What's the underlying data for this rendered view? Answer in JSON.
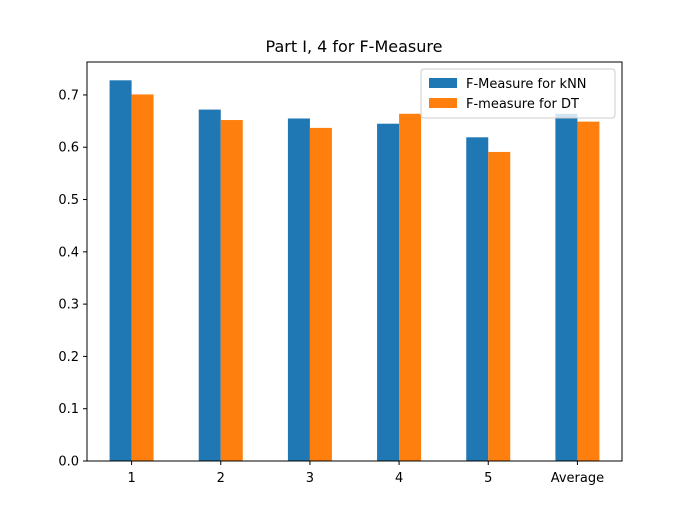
{
  "chart_data": {
    "type": "bar",
    "title": "Part I, 4 for F-Measure",
    "xlabel": "",
    "ylabel": "",
    "categories": [
      "1",
      "2",
      "3",
      "4",
      "5",
      "Average"
    ],
    "series": [
      {
        "name": "F-Measure for kNN",
        "color": "#1f77b4",
        "values": [
          0.728,
          0.672,
          0.655,
          0.645,
          0.619,
          0.664
        ]
      },
      {
        "name": "F-measure for DT",
        "color": "#ff7f0e",
        "values": [
          0.701,
          0.652,
          0.637,
          0.664,
          0.591,
          0.649
        ]
      }
    ],
    "ylim": [
      0,
      0.763
    ],
    "yticks": [
      "0.0",
      "0.1",
      "0.2",
      "0.3",
      "0.4",
      "0.5",
      "0.6",
      "0.7"
    ],
    "grid": false,
    "legend_position": "top-right"
  }
}
